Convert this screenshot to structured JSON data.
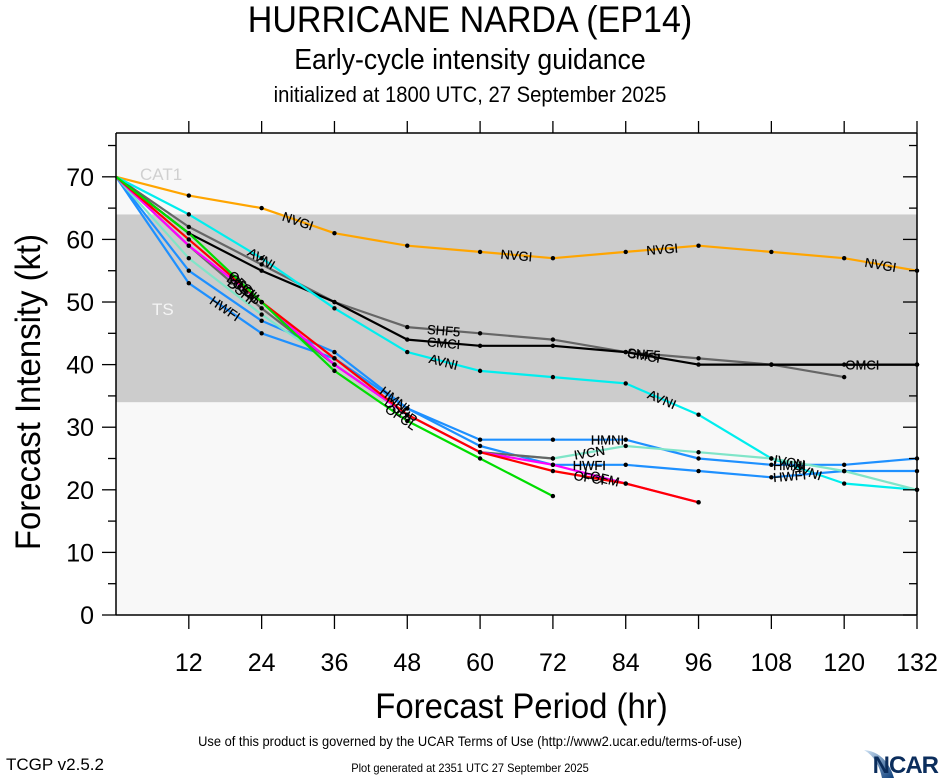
{
  "header": {
    "title": "HURRICANE NARDA (EP14)",
    "subtitle": "Early-cycle intensity guidance",
    "init": "initialized at 1800 UTC, 27 September 2025"
  },
  "footer": {
    "terms": "Use of this product is governed by the UCAR Terms of Use (http://www2.ucar.edu/terms-of-use)",
    "version": "TCGP v2.5.2",
    "generated": "Plot generated at 2351 UTC   27 September 2025",
    "logo": "NCAR"
  },
  "colors": {
    "plot_background": "#f8f8f8",
    "ts_band": "#cccccc",
    "band_label": "#e0e0e0"
  },
  "chart_data": {
    "type": "line",
    "title": "HURRICANE NARDA (EP14)",
    "xlabel": "Forecast Period (hr)",
    "ylabel": "Forecast Intensity (kt)",
    "xlim": [
      0,
      132
    ],
    "ylim": [
      0,
      77
    ],
    "xticks": [
      12,
      24,
      36,
      48,
      60,
      72,
      84,
      96,
      108,
      120,
      132
    ],
    "yticks": [
      0,
      10,
      20,
      30,
      40,
      50,
      60,
      70
    ],
    "grid": false,
    "bands": [
      {
        "label": "TS",
        "ymin": 34,
        "ymax": 64,
        "color": "#cccccc"
      },
      {
        "label": "CAT1",
        "ymin": 64,
        "ymax": 83,
        "color": "#f8f8f8"
      }
    ],
    "series": [
      {
        "name": "NVGI",
        "color": "#ffa500",
        "x": [
          0,
          12,
          24,
          36,
          48,
          60,
          72,
          84,
          96,
          108,
          120,
          132
        ],
        "y": [
          70,
          67,
          65,
          61,
          59,
          58,
          57,
          58,
          59,
          58,
          57,
          55
        ],
        "label_at": [
          30,
          66,
          90,
          126
        ]
      },
      {
        "name": "SHF5",
        "color": "#666666",
        "x": [
          0,
          12,
          24,
          36,
          48,
          60,
          72,
          84,
          96,
          108,
          120
        ],
        "y": [
          70,
          62,
          56,
          50,
          46,
          45,
          44,
          42,
          41,
          40,
          38
        ],
        "label_at": [
          54,
          87
        ]
      },
      {
        "name": "CMCI",
        "color": "#000000",
        "x": [
          0,
          12,
          24,
          36,
          48,
          60,
          72,
          84,
          96,
          108,
          120,
          132
        ],
        "y": [
          70,
          61,
          55,
          50,
          44,
          43,
          43,
          42,
          40,
          40,
          40,
          40
        ],
        "label_at": [
          54,
          87
        ]
      },
      {
        "name": "OMCI",
        "color": "#000000",
        "x": [
          108,
          132
        ],
        "y": [
          40,
          40
        ],
        "label_at": [
          123
        ]
      },
      {
        "name": "AVNI",
        "color": "#00eeee",
        "x": [
          0,
          12,
          24,
          36,
          48,
          60,
          72,
          84,
          96,
          108,
          120,
          132
        ],
        "y": [
          70,
          64,
          57,
          49,
          42,
          39,
          38,
          37,
          32,
          25,
          21,
          20
        ],
        "label_at": [
          24,
          54,
          90,
          114
        ]
      },
      {
        "name": "HMNI",
        "color": "#1e90ff",
        "x": [
          0,
          12,
          24,
          36,
          48,
          60,
          72,
          84,
          96,
          108,
          120,
          132
        ],
        "y": [
          70,
          55,
          47,
          42,
          33,
          28,
          28,
          28,
          25,
          24,
          24,
          25
        ],
        "label_at": [
          46,
          81,
          111
        ]
      },
      {
        "name": "HWFI",
        "color": "#1e90ff",
        "x": [
          0,
          12,
          24,
          36,
          48,
          60,
          72,
          84,
          96,
          108,
          120,
          132
        ],
        "y": [
          70,
          53,
          45,
          41,
          33,
          27,
          24,
          24,
          23,
          22,
          23,
          23
        ],
        "label_at": [
          18,
          78,
          111
        ]
      },
      {
        "name": "IVCN",
        "color": "#7fe5c8",
        "x": [
          0,
          12,
          24,
          36,
          48,
          60,
          72,
          84,
          96,
          108,
          120,
          132
        ],
        "y": [
          70,
          57,
          48,
          40,
          32,
          26,
          25,
          27,
          26,
          25,
          23,
          20
        ],
        "label_at": [
          78,
          111
        ]
      },
      {
        "name": "DSHP",
        "color": "#666666",
        "x": [
          0,
          12,
          24,
          36,
          48,
          60,
          72
        ],
        "y": [
          70,
          59,
          49,
          40,
          32,
          26,
          25
        ],
        "label_at": [
          21,
          47
        ]
      },
      {
        "name": "LGEM",
        "color": "#ff00ff",
        "x": [
          0,
          12,
          24,
          36,
          48,
          60,
          72,
          84,
          96
        ],
        "y": [
          70,
          59,
          50,
          40,
          32,
          26,
          24,
          21,
          18
        ],
        "label_at": [
          21,
          80
        ]
      },
      {
        "name": "OFCI",
        "color": "#ff0000",
        "x": [
          0,
          12,
          24,
          36,
          48,
          60,
          72,
          84,
          96
        ],
        "y": [
          70,
          60,
          50,
          41,
          32,
          26,
          23,
          21,
          18
        ],
        "label_at": [
          21,
          78
        ]
      },
      {
        "name": "OFCL",
        "color": "#00dd00",
        "x": [
          0,
          12,
          24,
          36,
          48,
          60,
          72
        ],
        "y": [
          70,
          61,
          50,
          39,
          31,
          25,
          19
        ],
        "label_at": [
          21,
          47
        ]
      }
    ]
  }
}
